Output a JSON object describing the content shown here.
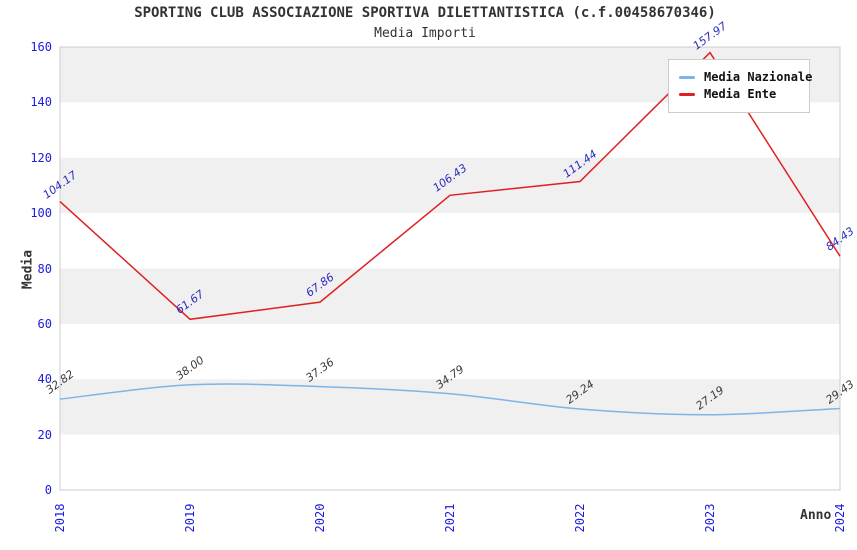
{
  "chart_data": {
    "type": "line",
    "title": "SPORTING CLUB ASSOCIAZIONE SPORTIVA DILETTANTISTICA (c.f.00458670346)",
    "subtitle": "Media Importi",
    "xlabel": "Anno",
    "ylabel": "Media",
    "categories": [
      "2018",
      "2019",
      "2020",
      "2021",
      "2022",
      "2023",
      "2024"
    ],
    "series": [
      {
        "name": "Media Nazionale",
        "color": "#7cb5e8",
        "label_color": "#3a3a3a",
        "smooth": true,
        "values": [
          32.82,
          38.0,
          37.36,
          34.79,
          29.24,
          27.19,
          29.43
        ],
        "point_labels": [
          "32.82",
          "38.00",
          "37.36",
          "34.79",
          "29.24",
          "27.19",
          "29.43"
        ]
      },
      {
        "name": "Media Ente",
        "color": "#e02020",
        "label_color": "#2a2ac0",
        "smooth": false,
        "values": [
          104.17,
          61.67,
          67.86,
          106.43,
          111.44,
          157.97,
          84.43
        ],
        "point_labels": [
          "104.17",
          "61.67",
          "67.86",
          "106.43",
          "111.44",
          "157.97",
          "84.43"
        ]
      }
    ],
    "ylim": [
      0,
      160
    ],
    "y_tick_step": 20,
    "y_ticks": [
      0,
      20,
      40,
      60,
      80,
      100,
      120,
      140,
      160
    ],
    "grid": "alternating-horizontal-bands",
    "band_color": "#f0f0f0",
    "plot_border_color": "#cccccc",
    "tick_label_color": "#1c1cdd",
    "legend_position": "top-right"
  }
}
